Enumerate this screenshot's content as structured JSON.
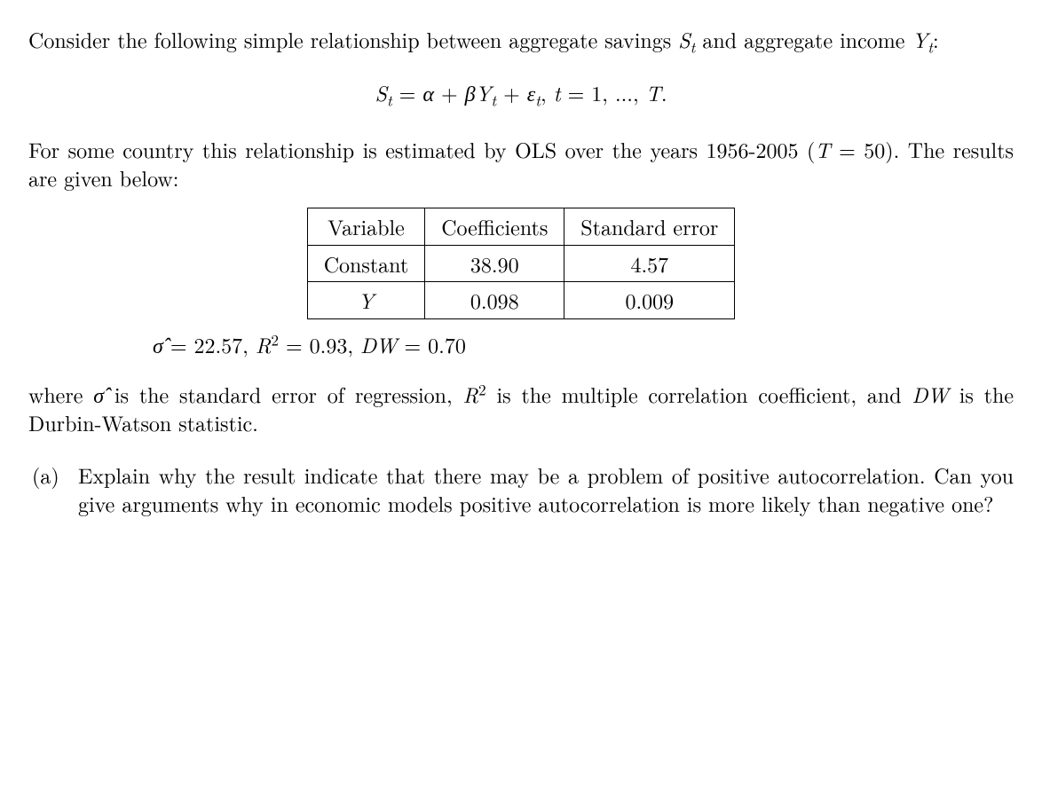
{
  "intro1_pre": "Consider the following simple relationship between aggregate savings ",
  "intro1_S": "S",
  "intro1_St_sub": "t",
  "intro1_mid": " and aggregate income ",
  "intro1_Y": "Y",
  "intro1_Yt_sub": "t",
  "intro1_post": ":",
  "equation": {
    "S": "S",
    "sub_t1": "t",
    "eq": " = ",
    "alpha": "α",
    "plus1": " + ",
    "beta": "β",
    "Y": "Y",
    "sub_t2": "t",
    "plus2": " + ",
    "eps": "ε",
    "sub_t3": "t",
    "comma": ",  ",
    "t": "t",
    "eq2": " = ",
    "range": "1, ..., ",
    "T": "T",
    "end": "."
  },
  "intro2_pre": "For some country this relationship is estimated by OLS over the years 1956-2005 (",
  "intro2_T": "T",
  "intro2_eq50": " = 50). The results are given below:",
  "table": {
    "headers": [
      "Variable",
      "Coefficients",
      "Standard error"
    ],
    "rows": [
      [
        "Constant",
        "38.90",
        "4.57"
      ],
      [
        "Y",
        "0.098",
        "0.009"
      ]
    ],
    "row1_var_italic": false,
    "row2_var_italic": true
  },
  "stats": {
    "sigma_hat": "σ̂",
    "eqsym": "   =   ",
    "sigma_val": "22.57",
    "sep1": ",  ",
    "R": "R",
    "sq": "2",
    "eq2": " = ",
    "r2_val": "0.93",
    "sep2": ",  ",
    "DW": "DW",
    "eq3": " = ",
    "dw_val": "0.70"
  },
  "where_pre": "where ",
  "where_sigma": "σ̂",
  "where_mid1": " is the standard error of regression, ",
  "where_R": "R",
  "where_sq": "2",
  "where_mid2": " is the multiple correlation coefficient, and ",
  "where_DW": "DW",
  "where_post": " is the Durbin-Watson statistic.",
  "qa": {
    "label": "(a)",
    "text": "Explain why the result indicate that there may be a problem of positive autocorrelation.  Can you give arguments why in economic models positive autocorrelation is more likely than negative one?"
  }
}
